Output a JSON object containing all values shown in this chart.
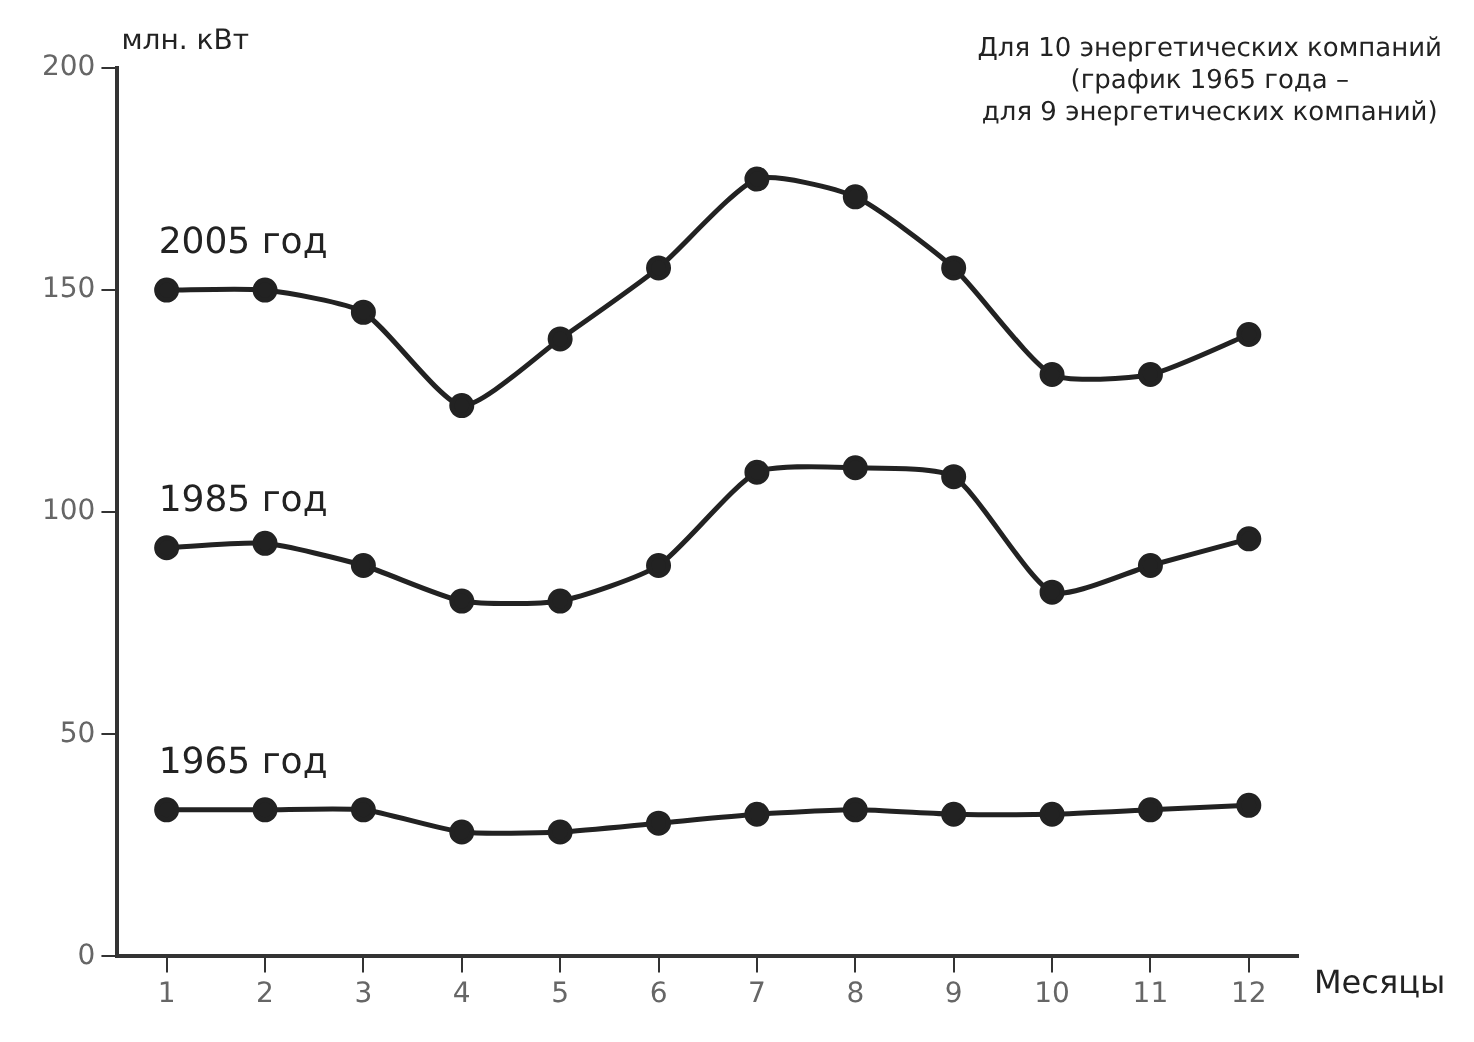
{
  "chart_data": {
    "type": "line",
    "ylabel": "млн. кВт",
    "xlabel": "Месяцы",
    "annotations": [
      "Для 10 энергетических компаний\n(график 1965 года –\nдля 9 энергетических компаний)"
    ],
    "x": [
      1,
      2,
      3,
      4,
      5,
      6,
      7,
      8,
      9,
      10,
      11,
      12
    ],
    "series": [
      {
        "name": "2005 год",
        "color": "#222222",
        "values": [
          150,
          150,
          145,
          124,
          139,
          155,
          175,
          171,
          155,
          131,
          131,
          140
        ]
      },
      {
        "name": "1985 год",
        "color": "#222222",
        "values": [
          92,
          93,
          88,
          80,
          80,
          88,
          109,
          110,
          108,
          82,
          88,
          94
        ]
      },
      {
        "name": "1965 год",
        "color": "#222222",
        "values": [
          33,
          33,
          33,
          28,
          28,
          30,
          32,
          33,
          32,
          32,
          33,
          34
        ]
      }
    ],
    "xlim": [
      0.5,
      12.5
    ],
    "xticks": [
      1,
      2,
      3,
      4,
      5,
      6,
      7,
      8,
      9,
      10,
      11,
      12
    ],
    "ylim": [
      0,
      200
    ],
    "yticks": [
      0,
      50,
      100,
      150,
      200
    ],
    "grid": false,
    "legend": false,
    "marker": "circle",
    "line_style": "solid"
  }
}
